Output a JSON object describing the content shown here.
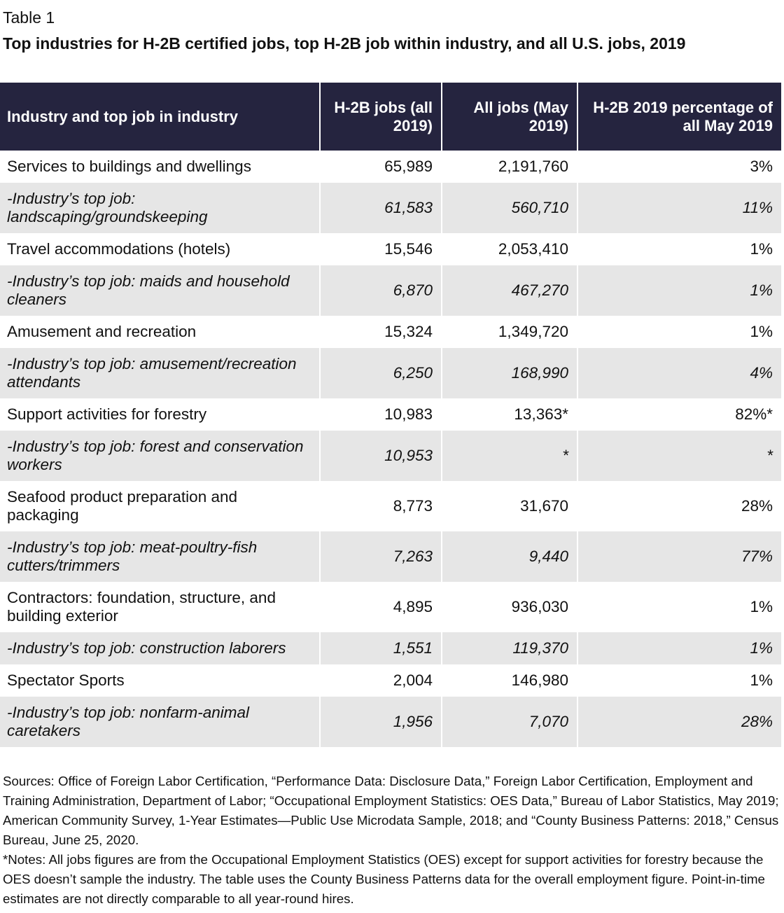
{
  "header": {
    "label": "Table 1",
    "title": "Top industries for H-2B certified jobs, top H-2B job within industry, and all U.S. jobs, 2019"
  },
  "table": {
    "columns": [
      "Industry and top job in industry",
      "H-2B jobs (all 2019)",
      "All jobs (May 2019)",
      "H-2B 2019 percentage of all May 2019"
    ],
    "rows": [
      [
        "Services to buildings and dwellings",
        "65,989",
        "2,191,760",
        "3%"
      ],
      [
        "-Industry’s top job: landscaping/groundskeeping",
        "61,583",
        "560,710",
        "11%"
      ],
      [
        "Travel accommodations (hotels)",
        "15,546",
        "2,053,410",
        "1%"
      ],
      [
        "-Industry’s top job: maids and household cleaners",
        "6,870",
        "467,270",
        "1%"
      ],
      [
        "Amusement and recreation",
        "15,324",
        "1,349,720",
        "1%"
      ],
      [
        "-Industry’s top job: amusement/recreation attendants",
        "6,250",
        "168,990",
        "4%"
      ],
      [
        "Support activities for forestry",
        "10,983",
        "13,363*",
        "82%*"
      ],
      [
        "-Industry’s top job: forest and conservation workers",
        "10,953",
        "*",
        "*"
      ],
      [
        "Seafood product preparation and packaging",
        "8,773",
        "31,670",
        "28%"
      ],
      [
        "-Industry’s top job: meat-poultry-fish cutters/trimmers",
        "7,263",
        "9,440",
        "77%"
      ],
      [
        "Contractors: foundation, structure, and building exterior",
        "4,895",
        "936,030",
        "1%"
      ],
      [
        "-Industry’s top job: construction laborers",
        "1,551",
        "119,370",
        "1%"
      ],
      [
        "Spectator Sports",
        "2,004",
        "146,980",
        "1%"
      ],
      [
        "-Industry’s top job: nonfarm-animal caretakers",
        "1,956",
        "7,070",
        "28%"
      ]
    ]
  },
  "footer": {
    "sources": "Sources: Office of Foreign Labor Certification, “Performance Data: Disclosure Data,” Foreign Labor Certification, Employment and Training Administration, Department of Labor; “Occupational Employment Statistics: OES Data,” Bureau of Labor Statistics, May 2019; American Community Survey, 1-Year Estimates—Public Use Microdata Sample, 2018; and “County Business Patterns: 2018,” Census Bureau, June 25, 2020.",
    "notes": "*Notes: All jobs figures are from the Occupational Employment Statistics (OES) except for support activities for forestry because the OES doesn’t sample the industry. The table uses the County Business Patterns data for the overall employment figure. Point-in-time estimates are not directly comparable to all year-round hires."
  }
}
